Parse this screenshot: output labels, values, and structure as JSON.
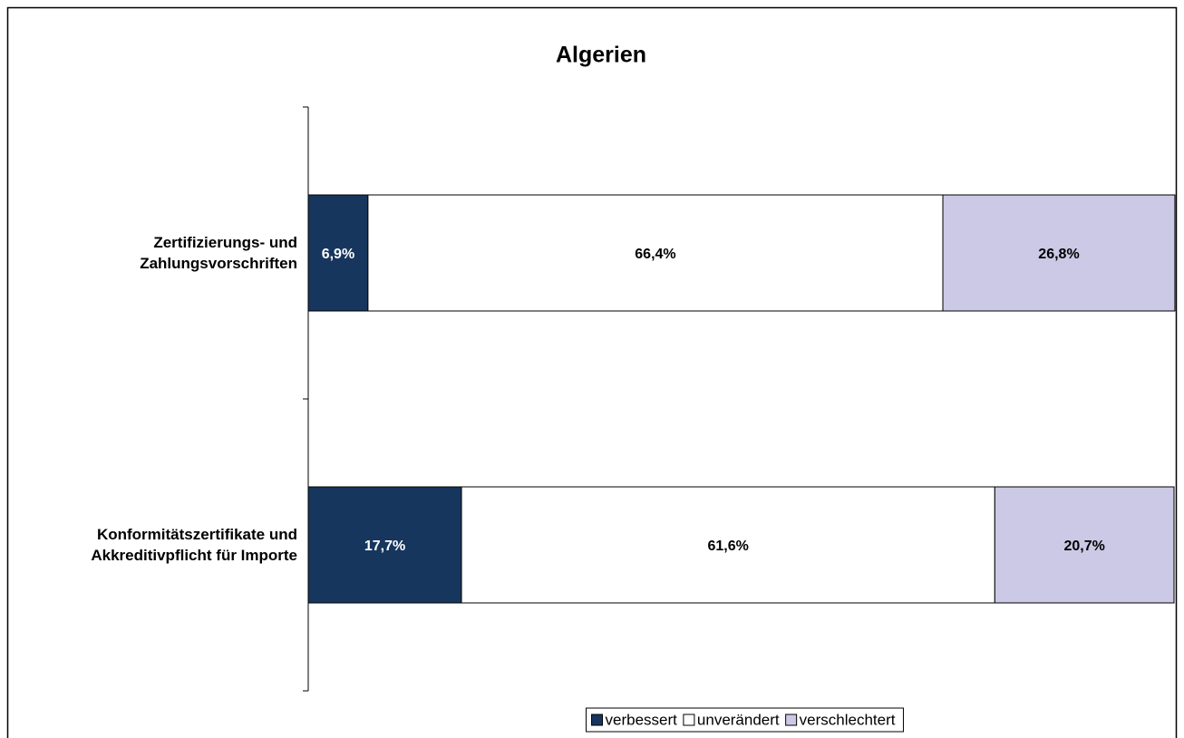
{
  "chart_data": {
    "type": "stacked-bar-horizontal",
    "title": "Algerien",
    "categories": [
      "Zertifizierungs- und\nZahlungsvorschriften",
      "Konformitätszertifikate und\nAkkreditivpflicht für Importe"
    ],
    "series": [
      {
        "name": "verbessert",
        "color": "#17365d",
        "values": [
          6.9,
          17.7
        ],
        "value_labels": [
          "6,9%",
          "17,7%"
        ]
      },
      {
        "name": "unverändert",
        "color": "#ffffff",
        "values": [
          66.4,
          61.6
        ],
        "value_labels": [
          "66,4%",
          "61,6%"
        ]
      },
      {
        "name": "verschlechtert",
        "color": "#ccc9e6",
        "values": [
          26.8,
          20.7
        ],
        "value_labels": [
          "26,8%",
          "20,7%"
        ]
      }
    ],
    "xlim": [
      0,
      100
    ],
    "legend": "bottom"
  }
}
